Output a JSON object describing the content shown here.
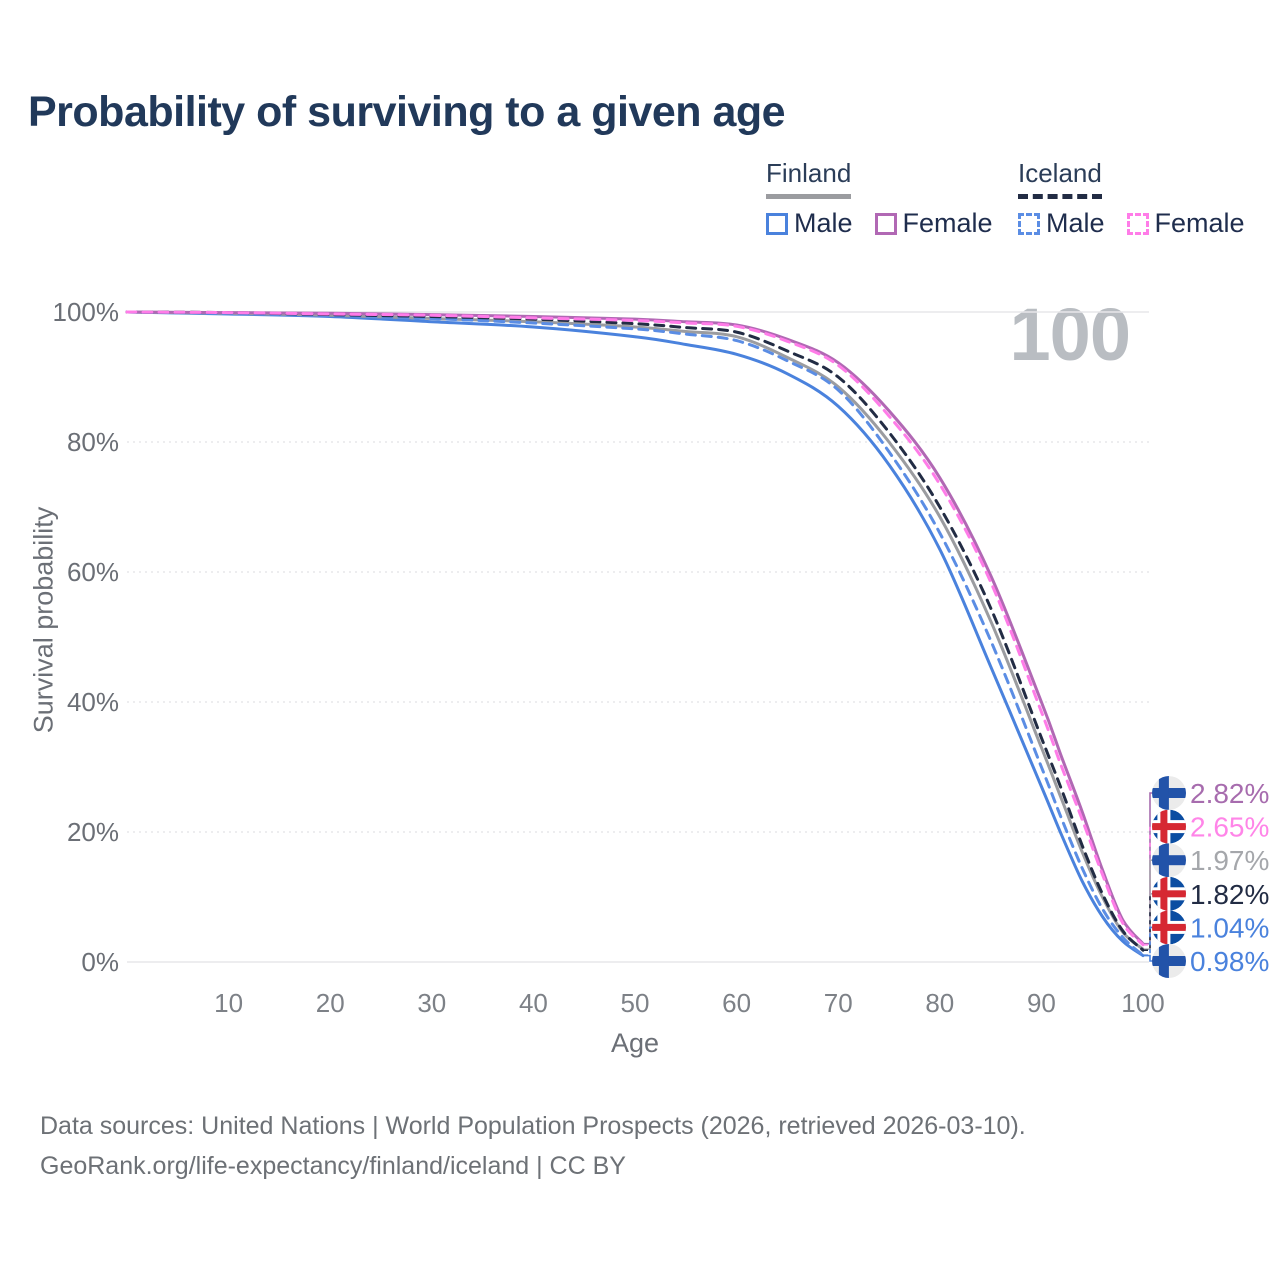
{
  "title": "Probability of surviving to a given age",
  "watermark": "100",
  "legend": {
    "finland": {
      "title": "Finland",
      "male": "Male",
      "female": "Female"
    },
    "iceland": {
      "title": "Iceland",
      "male": "Male",
      "female": "Female"
    }
  },
  "colors": {
    "finland_male": "#4a82dd",
    "finland_female": "#b168b4",
    "finland_total": "#9b9ca0",
    "iceland_male": "#5b8de4",
    "iceland_female": "#ff7ce8",
    "iceland_total": "#222c44",
    "title_navy": "#21395a",
    "axis_gray": "#6b6f76",
    "grid_gray": "#e7e7ea",
    "watermark_gray": "#b9bdc2",
    "flag_finland_bg": "#ebebeb",
    "flag_finland_cross": "#2253a9",
    "flag_iceland_bg": "#0b4da2",
    "flag_iceland_cross_white": "#ffffff",
    "flag_iceland_cross_red": "#d62832"
  },
  "chart_data": {
    "type": "line",
    "title": "Probability of surviving to a given age",
    "xlabel": "Age",
    "ylabel": "Survival probability",
    "xlim": [
      0,
      100
    ],
    "ylim": [
      0,
      100
    ],
    "grid": true,
    "legend_position": "top-right",
    "x_ticks": [
      10,
      20,
      30,
      40,
      50,
      60,
      70,
      80,
      90,
      100
    ],
    "y_ticks": [
      0,
      20,
      40,
      60,
      80,
      100
    ],
    "y_tick_suffix": "%",
    "x": [
      0,
      10,
      20,
      30,
      40,
      50,
      55,
      60,
      65,
      70,
      75,
      80,
      85,
      90,
      92,
      94,
      96,
      98,
      100
    ],
    "series": [
      {
        "id": "finland_male",
        "name": "Finland Male",
        "color": "#4a82dd",
        "dash": null,
        "values": [
          100,
          99.7,
          99.3,
          98.5,
          97.7,
          96.2,
          95.0,
          93.5,
          90.5,
          85.5,
          76.5,
          63.5,
          45.5,
          27.0,
          19.5,
          12.5,
          7.0,
          3.2,
          0.98
        ]
      },
      {
        "id": "finland_total",
        "name": "Finland",
        "color": "#9b9ca0",
        "dash": null,
        "values": [
          100,
          99.8,
          99.5,
          99.0,
          98.5,
          97.7,
          97.0,
          96.2,
          93.0,
          88.5,
          80.0,
          68.5,
          52.5,
          33.0,
          25.0,
          17.0,
          10.0,
          4.6,
          1.97
        ]
      },
      {
        "id": "finland_female",
        "name": "Finland Female",
        "color": "#b168b4",
        "dash": null,
        "values": [
          100,
          99.9,
          99.8,
          99.6,
          99.3,
          98.9,
          98.5,
          98.0,
          95.8,
          92.2,
          84.8,
          74.5,
          59.5,
          40.0,
          31.5,
          23.2,
          14.2,
          6.5,
          2.82
        ]
      },
      {
        "id": "iceland_male",
        "name": "Iceland Male",
        "color": "#5b8de4",
        "dash": "9 7",
        "values": [
          100,
          99.8,
          99.5,
          99.0,
          98.3,
          97.4,
          96.6,
          95.6,
          92.5,
          88.0,
          78.5,
          66.0,
          49.5,
          30.0,
          22.0,
          14.5,
          8.2,
          3.8,
          1.04
        ]
      },
      {
        "id": "iceland_total",
        "name": "Iceland",
        "color": "#222c44",
        "dash": "9 7",
        "values": [
          100,
          99.9,
          99.6,
          99.3,
          98.9,
          98.2,
          97.6,
          96.9,
          94.0,
          90.0,
          81.5,
          70.0,
          54.5,
          34.5,
          26.5,
          18.0,
          10.5,
          4.8,
          1.82
        ]
      },
      {
        "id": "iceland_female",
        "name": "Iceland Female",
        "color": "#ff7ce8",
        "dash": "9 7",
        "values": [
          100,
          99.9,
          99.7,
          99.5,
          99.1,
          98.7,
          98.3,
          97.8,
          95.5,
          91.8,
          84.0,
          73.5,
          58.5,
          38.5,
          30.0,
          22.0,
          13.5,
          6.0,
          2.65
        ]
      }
    ],
    "end_labels": [
      {
        "label": "2.82%",
        "value": 2.82,
        "series": "finland_female",
        "flag": "finland",
        "color": "#a76cae",
        "dashed": false
      },
      {
        "label": "2.65%",
        "value": 2.65,
        "series": "iceland_female",
        "flag": "iceland",
        "color": "#ff85e8",
        "dashed": true
      },
      {
        "label": "1.97%",
        "value": 1.97,
        "series": "finland_total",
        "flag": "finland",
        "color": "#a5a7ab",
        "dashed": false
      },
      {
        "label": "1.82%",
        "value": 1.82,
        "series": "iceland_total",
        "flag": "iceland",
        "color": "#222c44",
        "dashed": true
      },
      {
        "label": "1.04%",
        "value": 1.04,
        "series": "iceland_male",
        "flag": "iceland",
        "color": "#4a82dd",
        "dashed": true
      },
      {
        "label": "0.98%",
        "value": 0.98,
        "series": "finland_male",
        "flag": "finland",
        "color": "#4a82dd",
        "dashed": false
      }
    ]
  },
  "source": {
    "line1": "Data sources: United Nations | World Population Prospects (2026, retrieved 2026-03-10).",
    "line2": "GeoRank.org/life-expectancy/finland/iceland | CC BY"
  }
}
